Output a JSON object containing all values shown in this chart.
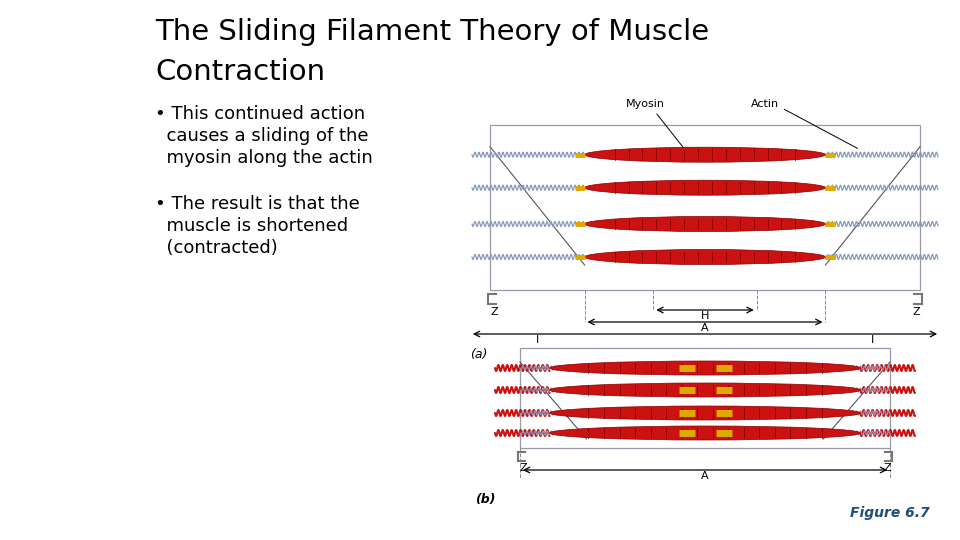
{
  "title_line1": "The Sliding Filament Theory of Muscle",
  "title_line2": "Contraction",
  "bullet1_line1": "• This continued action",
  "bullet1_line2": "  causes a sliding of the",
  "bullet1_line3": "  myosin along the actin",
  "bullet2_line1": "• The result is that the",
  "bullet2_line2": "  muscle is shortened",
  "bullet2_line3": "  (contracted)",
  "figure_label": "Figure 6.7",
  "label_a": "(a)",
  "label_b": "(b)",
  "bg_color": "#ffffff",
  "title_color": "#000000",
  "text_color": "#000000",
  "figure_label_color": "#1f4e79",
  "myosin_color": "#cc1111",
  "actin_color": "#8899bb",
  "actin_outer_color": "#8899bb",
  "yellow_color": "#ddaa00",
  "box_color": "#8899bb",
  "arrow_color": "#000000",
  "cross_color": "#880000"
}
